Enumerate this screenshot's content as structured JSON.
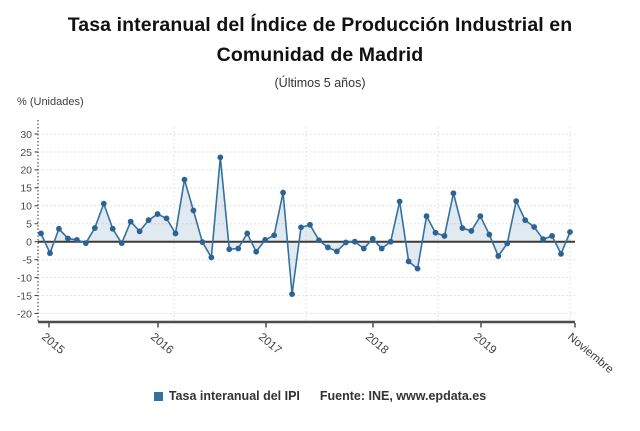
{
  "chart_data": {
    "type": "area",
    "title": "Tasa interanual del Índice de Producción Industrial en Comunidad de Madrid",
    "subtitle": "(Últimos 5 años)",
    "ylabel": "% (Unidades)",
    "ylim": [
      -20,
      30
    ],
    "y_ticks": [
      30,
      25,
      20,
      15,
      10,
      5,
      0,
      -5,
      -10,
      -15,
      -20
    ],
    "x_tick_labels": [
      "2015",
      "2016",
      "2017",
      "2018",
      "2019",
      "Noviembre"
    ],
    "grid": true,
    "legend_position": "bottom",
    "series": [
      {
        "name": "Tasa interanual del IPI",
        "color": "#35719f",
        "values": [
          2.3,
          -3.2,
          3.6,
          0.9,
          0.5,
          -0.4,
          3.8,
          10.6,
          3.6,
          -0.4,
          5.6,
          2.9,
          6.0,
          7.7,
          6.5,
          2.3,
          17.3,
          8.7,
          -0.1,
          -4.4,
          23.5,
          -2.1,
          -1.9,
          2.3,
          -2.8,
          0.5,
          1.8,
          13.7,
          -14.6,
          4.0,
          4.7,
          0.4,
          -1.6,
          -2.7,
          -0.2,
          0.0,
          -1.9,
          0.8,
          -1.9,
          0.0,
          11.2,
          -5.5,
          -7.5,
          7.1,
          2.5,
          1.6,
          13.5,
          3.8,
          3.0,
          7.1,
          2.0,
          -4.0,
          -0.5,
          11.3,
          6.0,
          4.1,
          0.7,
          1.6,
          -3.4,
          2.7
        ]
      }
    ],
    "source": "Fuente: INE, www.epdata.es"
  },
  "legend": {
    "series_label": "Tasa interanual del IPI",
    "marker_color": "#35719f"
  }
}
